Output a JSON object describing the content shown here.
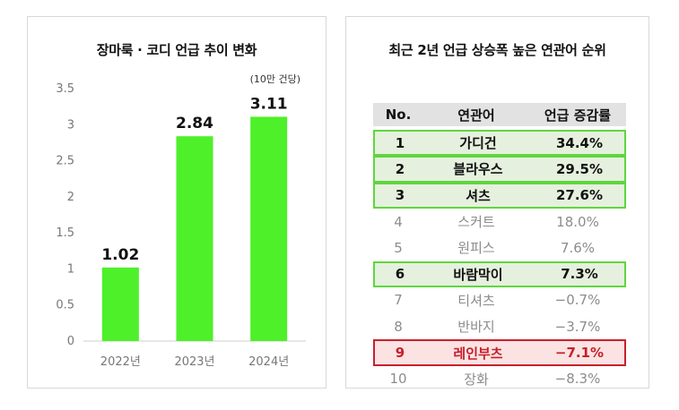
{
  "chart_data": {
    "type": "bar",
    "title": "장마룩 · 코디 언급 추이 변화",
    "unit_note": "(10만 건당)",
    "categories": [
      "2022년",
      "2023년",
      "2024년"
    ],
    "values": [
      1.02,
      2.84,
      3.11
    ],
    "value_labels": [
      "1.02",
      "2.84",
      "3.11"
    ],
    "ylim": [
      0,
      3.5
    ],
    "yticks": [
      "0",
      "0.5",
      "1",
      "1.5",
      "2",
      "2.5",
      "3",
      "3.5"
    ],
    "bar_color": "#4ef02a",
    "grid": false
  },
  "ranking": {
    "title": "최근 2년 언급 상승폭 높은 연관어 순위",
    "headers": {
      "no": "No.",
      "word": "연관어",
      "rate": "언급 증감률"
    },
    "rows": [
      {
        "no": "1",
        "word": "가디건",
        "rate": "34.4%",
        "highlight": "green"
      },
      {
        "no": "2",
        "word": "블라우스",
        "rate": "29.5%",
        "highlight": "green"
      },
      {
        "no": "3",
        "word": "셔츠",
        "rate": "27.6%",
        "highlight": "green"
      },
      {
        "no": "4",
        "word": "스커트",
        "rate": "18.0%",
        "highlight": "none"
      },
      {
        "no": "5",
        "word": "원피스",
        "rate": "7.6%",
        "highlight": "none"
      },
      {
        "no": "6",
        "word": "바람막이",
        "rate": "7.3%",
        "highlight": "green"
      },
      {
        "no": "7",
        "word": "티셔츠",
        "rate": "−0.7%",
        "highlight": "none"
      },
      {
        "no": "8",
        "word": "반바지",
        "rate": "−3.7%",
        "highlight": "none"
      },
      {
        "no": "9",
        "word": "레인부츠",
        "rate": "−7.1%",
        "highlight": "red"
      },
      {
        "no": "10",
        "word": "장화",
        "rate": "−8.3%",
        "highlight": "none"
      }
    ],
    "colors": {
      "green_border": "#5fd63f",
      "green_fill": "#e6f0de",
      "red_border": "#c8202c",
      "red_fill": "#fbe3e3",
      "header_fill": "#e2e2e2"
    }
  }
}
